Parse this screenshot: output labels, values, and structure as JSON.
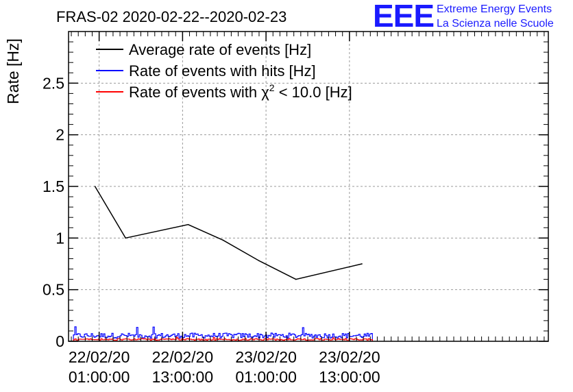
{
  "chart_data": {
    "type": "line",
    "title": "FRAS-02 2020-02-22--2020-02-23",
    "ylabel": "Rate [Hz]",
    "xlabel": "",
    "x_unit": "hours since 2020-02-22 00:00:00",
    "xlim": [
      -3.4,
      65.6
    ],
    "ylim": [
      0,
      3.0
    ],
    "grid": true,
    "legend_position": "top-left",
    "x_ticks": [
      {
        "x": 1,
        "line1": "22/02/20",
        "line2": "01:00:00"
      },
      {
        "x": 13,
        "line1": "22/02/20",
        "line2": "13:00:00"
      },
      {
        "x": 25,
        "line1": "23/02/20",
        "line2": "01:00:00"
      },
      {
        "x": 37,
        "line1": "23/02/20",
        "line2": "13:00:00"
      }
    ],
    "y_ticks": [
      {
        "y": 0,
        "label": "0"
      },
      {
        "y": 0.5,
        "label": "0.5"
      },
      {
        "y": 1,
        "label": "1"
      },
      {
        "y": 1.5,
        "label": "1.5"
      },
      {
        "y": 2,
        "label": "2"
      },
      {
        "y": 2.5,
        "label": "2.5"
      }
    ],
    "series": [
      {
        "name": "Average rate of events [Hz]",
        "color": "#000000",
        "x": [
          0.4,
          4.8,
          13.8,
          18.8,
          24.0,
          29.3,
          38.8
        ],
        "y": [
          1.5,
          1.0,
          1.13,
          0.98,
          0.78,
          0.6,
          0.75
        ]
      },
      {
        "name": "Rate of events with hits [Hz]",
        "color": "#0000ff",
        "x_start": -2.7,
        "x_end": 40.3,
        "y_mean": 0.055,
        "y_max": 0.15
      },
      {
        "name": "Rate of events with χ² < 10.0 [Hz]",
        "color": "#ff0000",
        "x_start": -2.7,
        "x_end": 40.3,
        "y_mean": 0.018,
        "y_max": 0.04
      }
    ],
    "legend": [
      {
        "label": "Average rate of events [Hz]",
        "color": "#000000"
      },
      {
        "label": "Rate of events with hits [Hz]",
        "color": "#0000ff"
      },
      {
        "label_prefix": "Rate of events with ",
        "label_symbol": "χ",
        "label_sup": "2",
        "label_suffix": " < 10.0 [Hz]",
        "color": "#ff0000"
      }
    ]
  },
  "logo": {
    "mark": "EEE",
    "line1": "Extreme Energy Events",
    "line2": "La Scienza nelle Scuole",
    "color": "#1a1aff"
  }
}
